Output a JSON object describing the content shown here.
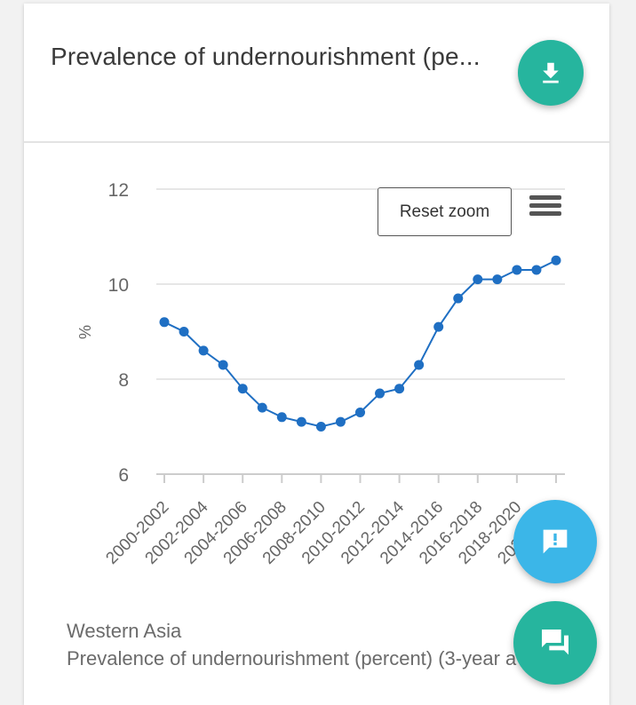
{
  "card": {
    "title": "Prevalence of undernourishment (pe...",
    "reset_zoom_label": "Reset zoom"
  },
  "icons": {
    "download": "download-icon",
    "menu": "hamburger-menu-icon",
    "feedback": "feedback-alert-icon",
    "chat": "chat-icon"
  },
  "colors": {
    "accent_teal": "#26b59e",
    "accent_blue": "#3bb6e8",
    "series": "#1f6fc3"
  },
  "chart_data": {
    "type": "line",
    "title": "",
    "xlabel": "",
    "ylabel": "%",
    "ylim": [
      6,
      12
    ],
    "yticks": [
      6,
      8,
      10,
      12
    ],
    "grid": true,
    "tick_labels": [
      "2000-2002",
      "2002-2004",
      "2004-2006",
      "2006-2008",
      "2008-2010",
      "2010-2012",
      "2012-2014",
      "2014-2016",
      "2016-2018",
      "2018-2020",
      "2020-2022"
    ],
    "x": [
      "2000-2002",
      "2001-2003",
      "2002-2004",
      "2003-2005",
      "2004-2006",
      "2005-2007",
      "2006-2008",
      "2007-2009",
      "2008-2010",
      "2009-2011",
      "2010-2012",
      "2011-2013",
      "2012-2014",
      "2013-2015",
      "2014-2016",
      "2015-2017",
      "2016-2018",
      "2017-2019",
      "2018-2020",
      "2019-2021",
      "2020-2022"
    ],
    "series": [
      {
        "values": [
          9.2,
          9.0,
          8.6,
          8.3,
          7.8,
          7.4,
          7.2,
          7.1,
          7.0,
          7.1,
          7.3,
          7.7,
          7.8,
          8.3,
          9.1,
          9.7,
          10.1,
          10.1,
          10.3,
          10.3,
          10.5
        ]
      }
    ]
  },
  "caption": {
    "line1": "Western Asia",
    "line2": "Prevalence of undernourishment (percent) (3-year average)"
  }
}
